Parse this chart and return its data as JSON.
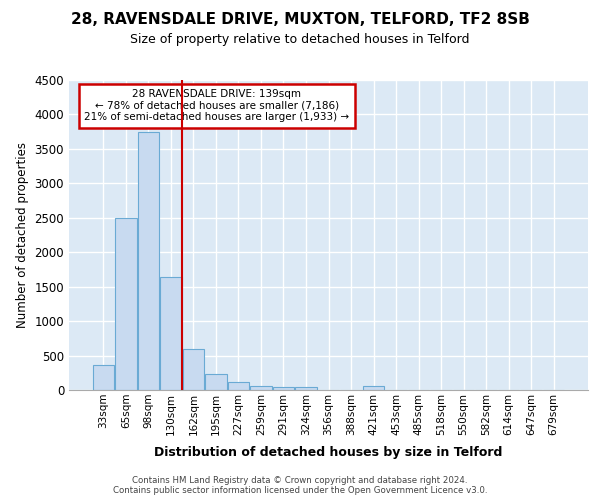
{
  "title1": "28, RAVENSDALE DRIVE, MUXTON, TELFORD, TF2 8SB",
  "title2": "Size of property relative to detached houses in Telford",
  "xlabel": "Distribution of detached houses by size in Telford",
  "ylabel": "Number of detached properties",
  "categories": [
    "33sqm",
    "65sqm",
    "98sqm",
    "130sqm",
    "162sqm",
    "195sqm",
    "227sqm",
    "259sqm",
    "291sqm",
    "324sqm",
    "356sqm",
    "388sqm",
    "421sqm",
    "453sqm",
    "485sqm",
    "518sqm",
    "550sqm",
    "582sqm",
    "614sqm",
    "647sqm",
    "679sqm"
  ],
  "values": [
    370,
    2500,
    3750,
    1640,
    590,
    230,
    110,
    65,
    45,
    40,
    0,
    0,
    60,
    0,
    0,
    0,
    0,
    0,
    0,
    0,
    0
  ],
  "bar_color": "#c8daf0",
  "bar_edge_color": "#6aaad4",
  "vline_color": "#cc0000",
  "annotation_box_text": "28 RAVENSDALE DRIVE: 139sqm\n← 78% of detached houses are smaller (7,186)\n21% of semi-detached houses are larger (1,933) →",
  "annotation_box_color": "#cc0000",
  "ylim": [
    0,
    4500
  ],
  "yticks": [
    0,
    500,
    1000,
    1500,
    2000,
    2500,
    3000,
    3500,
    4000,
    4500
  ],
  "bg_color": "#dce9f5",
  "grid_color": "#ffffff",
  "footer_line1": "Contains HM Land Registry data © Crown copyright and database right 2024.",
  "footer_line2": "Contains public sector information licensed under the Open Government Licence v3.0."
}
